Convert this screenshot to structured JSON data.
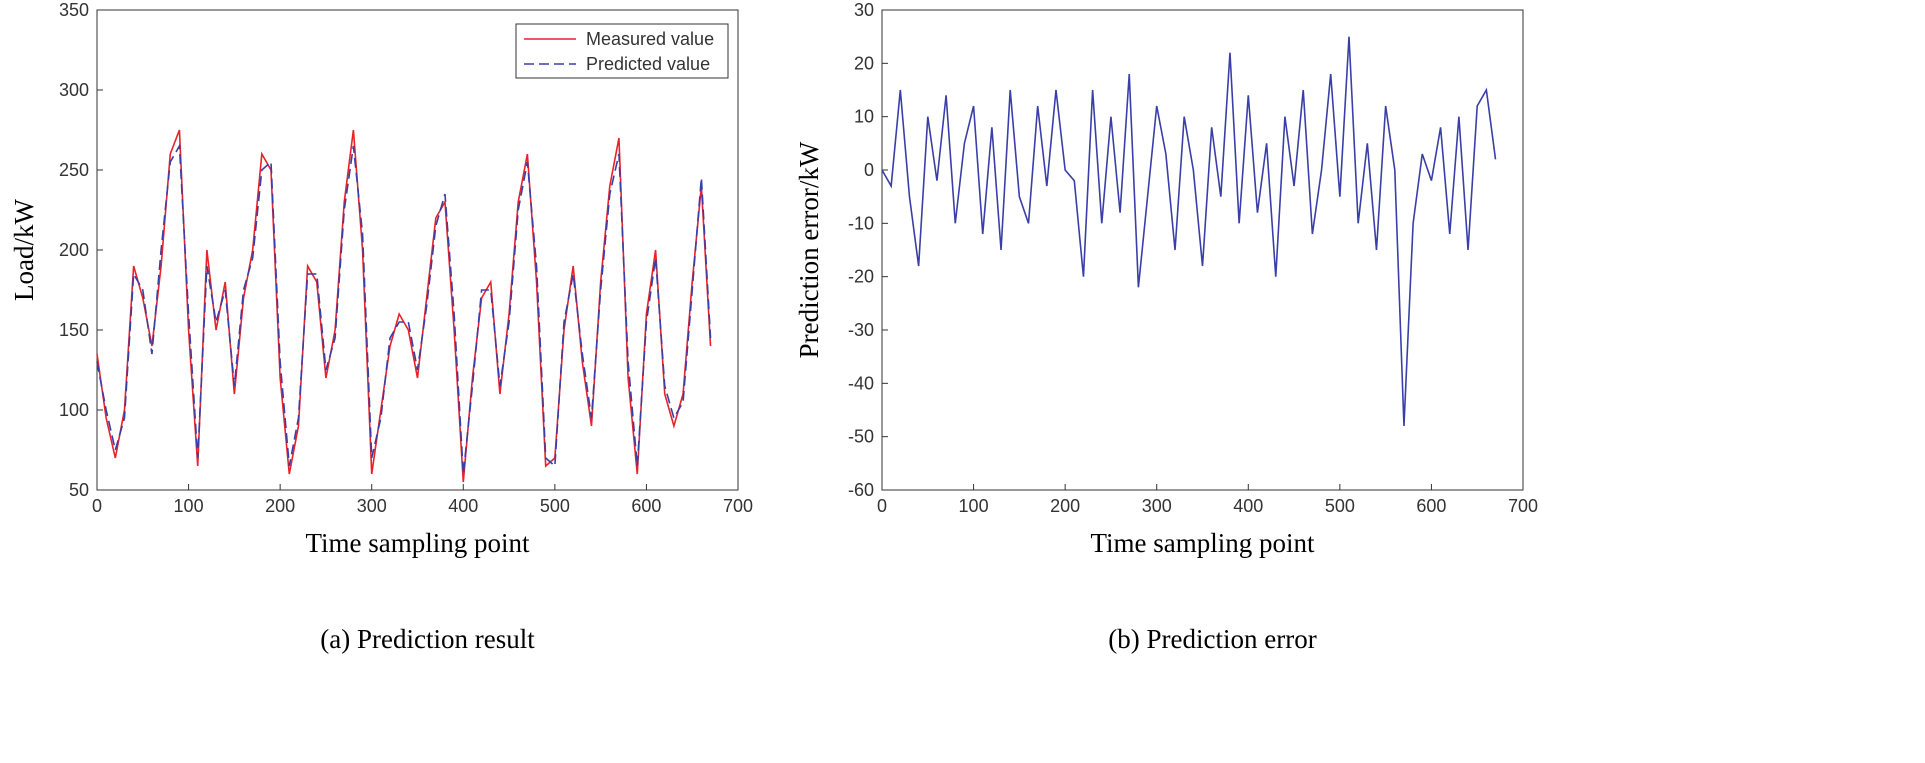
{
  "chart_data": [
    {
      "type": "line",
      "caption": "(a) Prediction result",
      "xlabel": "Time sampling point",
      "ylabel": "Load/kW",
      "x": [
        0,
        10,
        20,
        30,
        40,
        50,
        60,
        70,
        80,
        90,
        100,
        110,
        120,
        130,
        140,
        150,
        160,
        170,
        180,
        190,
        200,
        210,
        220,
        230,
        240,
        250,
        260,
        270,
        280,
        290,
        300,
        310,
        320,
        330,
        340,
        350,
        360,
        370,
        380,
        390,
        400,
        410,
        420,
        430,
        440,
        450,
        460,
        470,
        480,
        490,
        500,
        510,
        520,
        530,
        540,
        550,
        560,
        570,
        580,
        590,
        600,
        610,
        620,
        630,
        640,
        650,
        660,
        670
      ],
      "series": [
        {
          "name": "Measured value",
          "color": "#e8212a",
          "dash": false,
          "values": [
            135,
            95,
            70,
            100,
            190,
            170,
            140,
            190,
            260,
            275,
            150,
            65,
            200,
            150,
            180,
            110,
            170,
            200,
            260,
            250,
            120,
            60,
            90,
            190,
            180,
            120,
            150,
            230,
            275,
            200,
            60,
            100,
            140,
            160,
            150,
            120,
            170,
            220,
            230,
            150,
            55,
            120,
            170,
            180,
            110,
            160,
            230,
            260,
            180,
            65,
            70,
            150,
            190,
            130,
            90,
            180,
            240,
            270,
            120,
            60,
            160,
            200,
            110,
            90,
            110,
            180,
            240,
            140
          ]
        },
        {
          "name": "Predicted value",
          "color": "#3a3fa8",
          "dash": true,
          "values": [
            130,
            100,
            75,
            95,
            185,
            175,
            135,
            200,
            255,
            265,
            160,
            70,
            190,
            155,
            175,
            115,
            175,
            195,
            250,
            255,
            130,
            65,
            95,
            185,
            185,
            125,
            145,
            225,
            265,
            210,
            70,
            95,
            145,
            155,
            155,
            125,
            165,
            215,
            235,
            160,
            60,
            115,
            175,
            175,
            115,
            155,
            225,
            255,
            190,
            70,
            65,
            155,
            185,
            135,
            95,
            175,
            235,
            260,
            130,
            65,
            155,
            195,
            115,
            95,
            105,
            175,
            245,
            145
          ]
        }
      ],
      "xlim": [
        0,
        700
      ],
      "xticks": [
        0,
        100,
        200,
        300,
        400,
        500,
        600,
        700
      ],
      "ylim": [
        50,
        350
      ],
      "yticks": [
        50,
        100,
        150,
        200,
        250,
        300,
        350
      ],
      "legend": "upper right"
    },
    {
      "type": "line",
      "caption": "(b) Prediction error",
      "xlabel": "Time sampling point",
      "ylabel": "Prediction error/kW",
      "x": [
        0,
        10,
        20,
        30,
        40,
        50,
        60,
        70,
        80,
        90,
        100,
        110,
        120,
        130,
        140,
        150,
        160,
        170,
        180,
        190,
        200,
        210,
        220,
        230,
        240,
        250,
        260,
        270,
        280,
        290,
        300,
        310,
        320,
        330,
        340,
        350,
        360,
        370,
        380,
        390,
        400,
        410,
        420,
        430,
        440,
        450,
        460,
        470,
        480,
        490,
        500,
        510,
        520,
        530,
        540,
        550,
        560,
        570,
        580,
        590,
        600,
        610,
        620,
        630,
        640,
        650,
        660,
        670
      ],
      "series": [
        {
          "color": "#3a3fa8",
          "dash": false,
          "values": [
            0,
            -3,
            15,
            -5,
            -18,
            10,
            -2,
            14,
            -10,
            5,
            12,
            -12,
            8,
            -15,
            15,
            -5,
            -10,
            12,
            -3,
            15,
            0,
            -2,
            -20,
            15,
            -10,
            10,
            -8,
            18,
            -22,
            -5,
            12,
            3,
            -15,
            10,
            0,
            -18,
            8,
            -5,
            22,
            -10,
            14,
            -8,
            5,
            -20,
            10,
            -3,
            15,
            -12,
            0,
            18,
            -5,
            25,
            -10,
            5,
            -15,
            12,
            0,
            -48,
            -10,
            3,
            -2,
            8,
            -12,
            10,
            -15,
            12,
            15,
            2
          ]
        }
      ],
      "xlim": [
        0,
        700
      ],
      "xticks": [
        0,
        100,
        200,
        300,
        400,
        500,
        600,
        700
      ],
      "ylim": [
        -60,
        30
      ],
      "yticks": [
        -60,
        -50,
        -40,
        -30,
        -20,
        -10,
        0,
        10,
        20,
        30
      ]
    }
  ]
}
